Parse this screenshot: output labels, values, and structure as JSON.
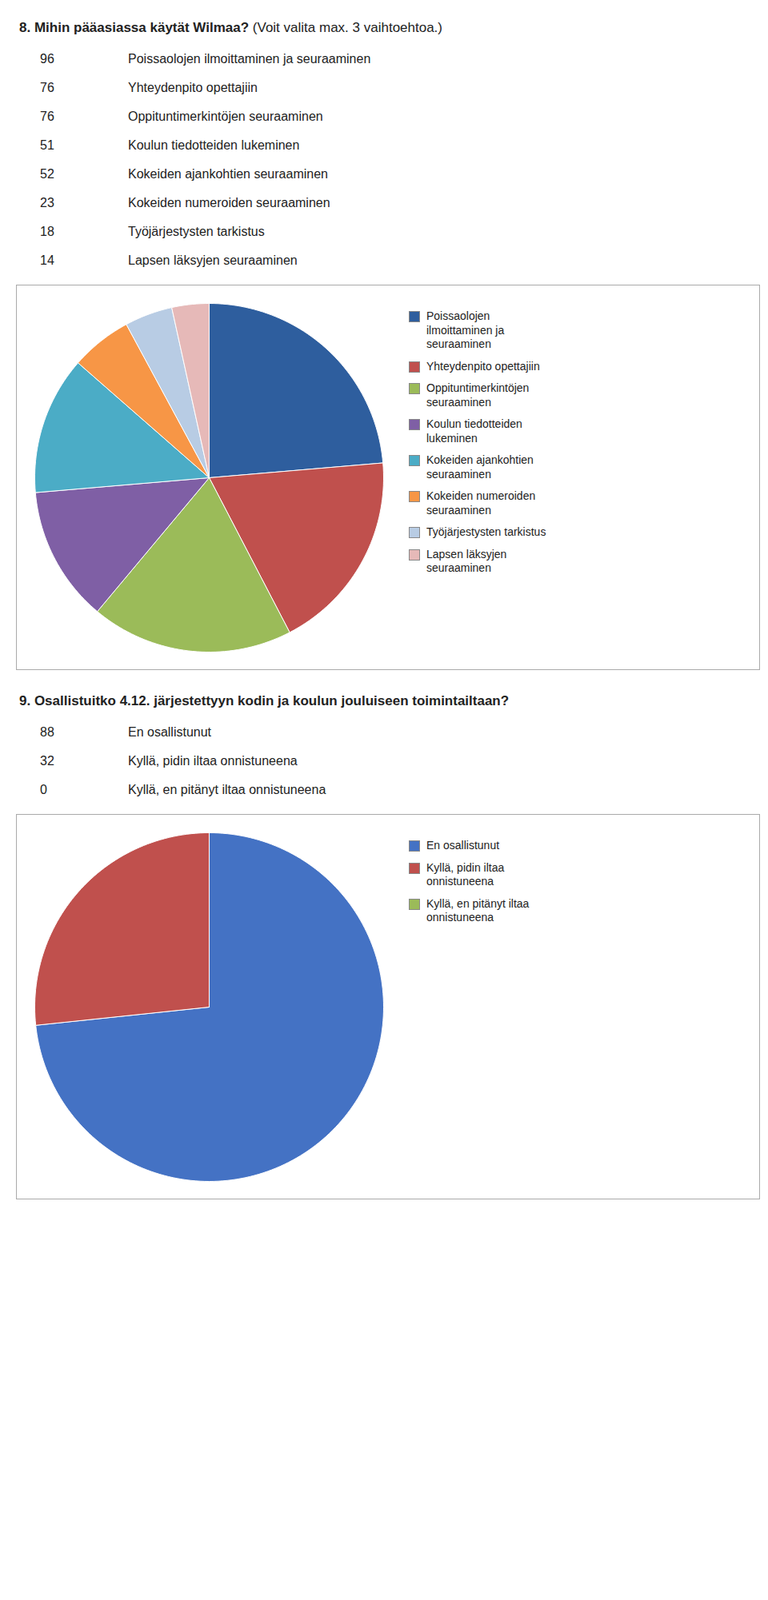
{
  "chart_data": [
    {
      "type": "pie",
      "title": "8. Mihin pääasiassa käytät Wilmaa?",
      "subtitle": "(Voit valita max. 3 vaihtoehtoa.)",
      "categories": [
        "Poissaolojen\nilmoittaminen ja\nseuraaminen",
        "Yhteydenpito opettajiin",
        "Oppituntimerkintöjen\nseuraaminen",
        "Koulun tiedotteiden\nlukeminen",
        "Kokeiden ajankohtien\nseuraaminen",
        "Kokeiden numeroiden\nseuraaminen",
        "Työjärjestysten tarkistus",
        "Lapsen läksyjen\nseuraaminen"
      ],
      "values": [
        96,
        76,
        76,
        51,
        52,
        23,
        18,
        14
      ],
      "colors": [
        "#2E5E9E",
        "#C0504D",
        "#9BBB59",
        "#7F5FA5",
        "#4BACC6",
        "#F79646",
        "#B8CCE4",
        "#E6B9B8"
      ],
      "legend": "right"
    },
    {
      "type": "pie",
      "title": "9. Osallistuitko 4.12. järjestettyyn kodin ja koulun jouluiseen toimintailtaan?",
      "categories": [
        "En osallistunut",
        "Kyllä, pidin iltaa\nonnistuneena",
        "Kyllä, en pitänyt iltaa\nonnistuneena"
      ],
      "values": [
        88,
        32,
        0
      ],
      "colors": [
        "#4472C4",
        "#C0504D",
        "#9BBB59"
      ],
      "legend": "right"
    }
  ]
}
